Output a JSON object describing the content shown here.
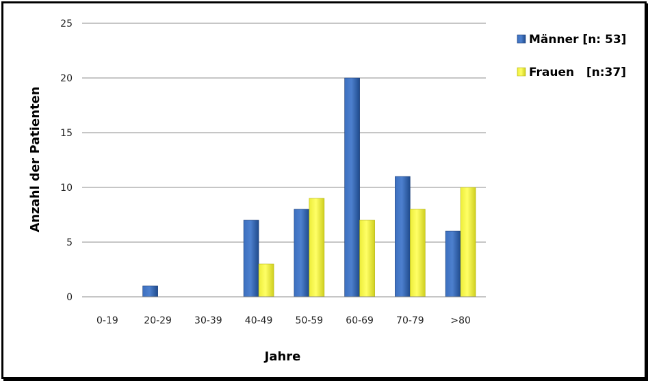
{
  "chart_data": {
    "type": "bar",
    "title": "",
    "xlabel": "Jahre",
    "ylabel": "Anzahl der Patienten",
    "categories": [
      "0-19",
      "20-29",
      "30-39",
      "40-49",
      "50-59",
      "60-69",
      "70-79",
      ">80"
    ],
    "ylim": [
      0,
      25
    ],
    "yticks": [
      0,
      5,
      10,
      15,
      20,
      25
    ],
    "grid": true,
    "legend_position": "top-right",
    "series": [
      {
        "name": "Männer [n: 53]",
        "color": "#2E5FA8",
        "values": [
          0,
          1,
          0,
          7,
          8,
          20,
          11,
          6
        ]
      },
      {
        "name": "Frauen   [n:37]",
        "color": "#F2F23A",
        "values": [
          0,
          0,
          0,
          3,
          9,
          7,
          8,
          10
        ]
      }
    ]
  }
}
